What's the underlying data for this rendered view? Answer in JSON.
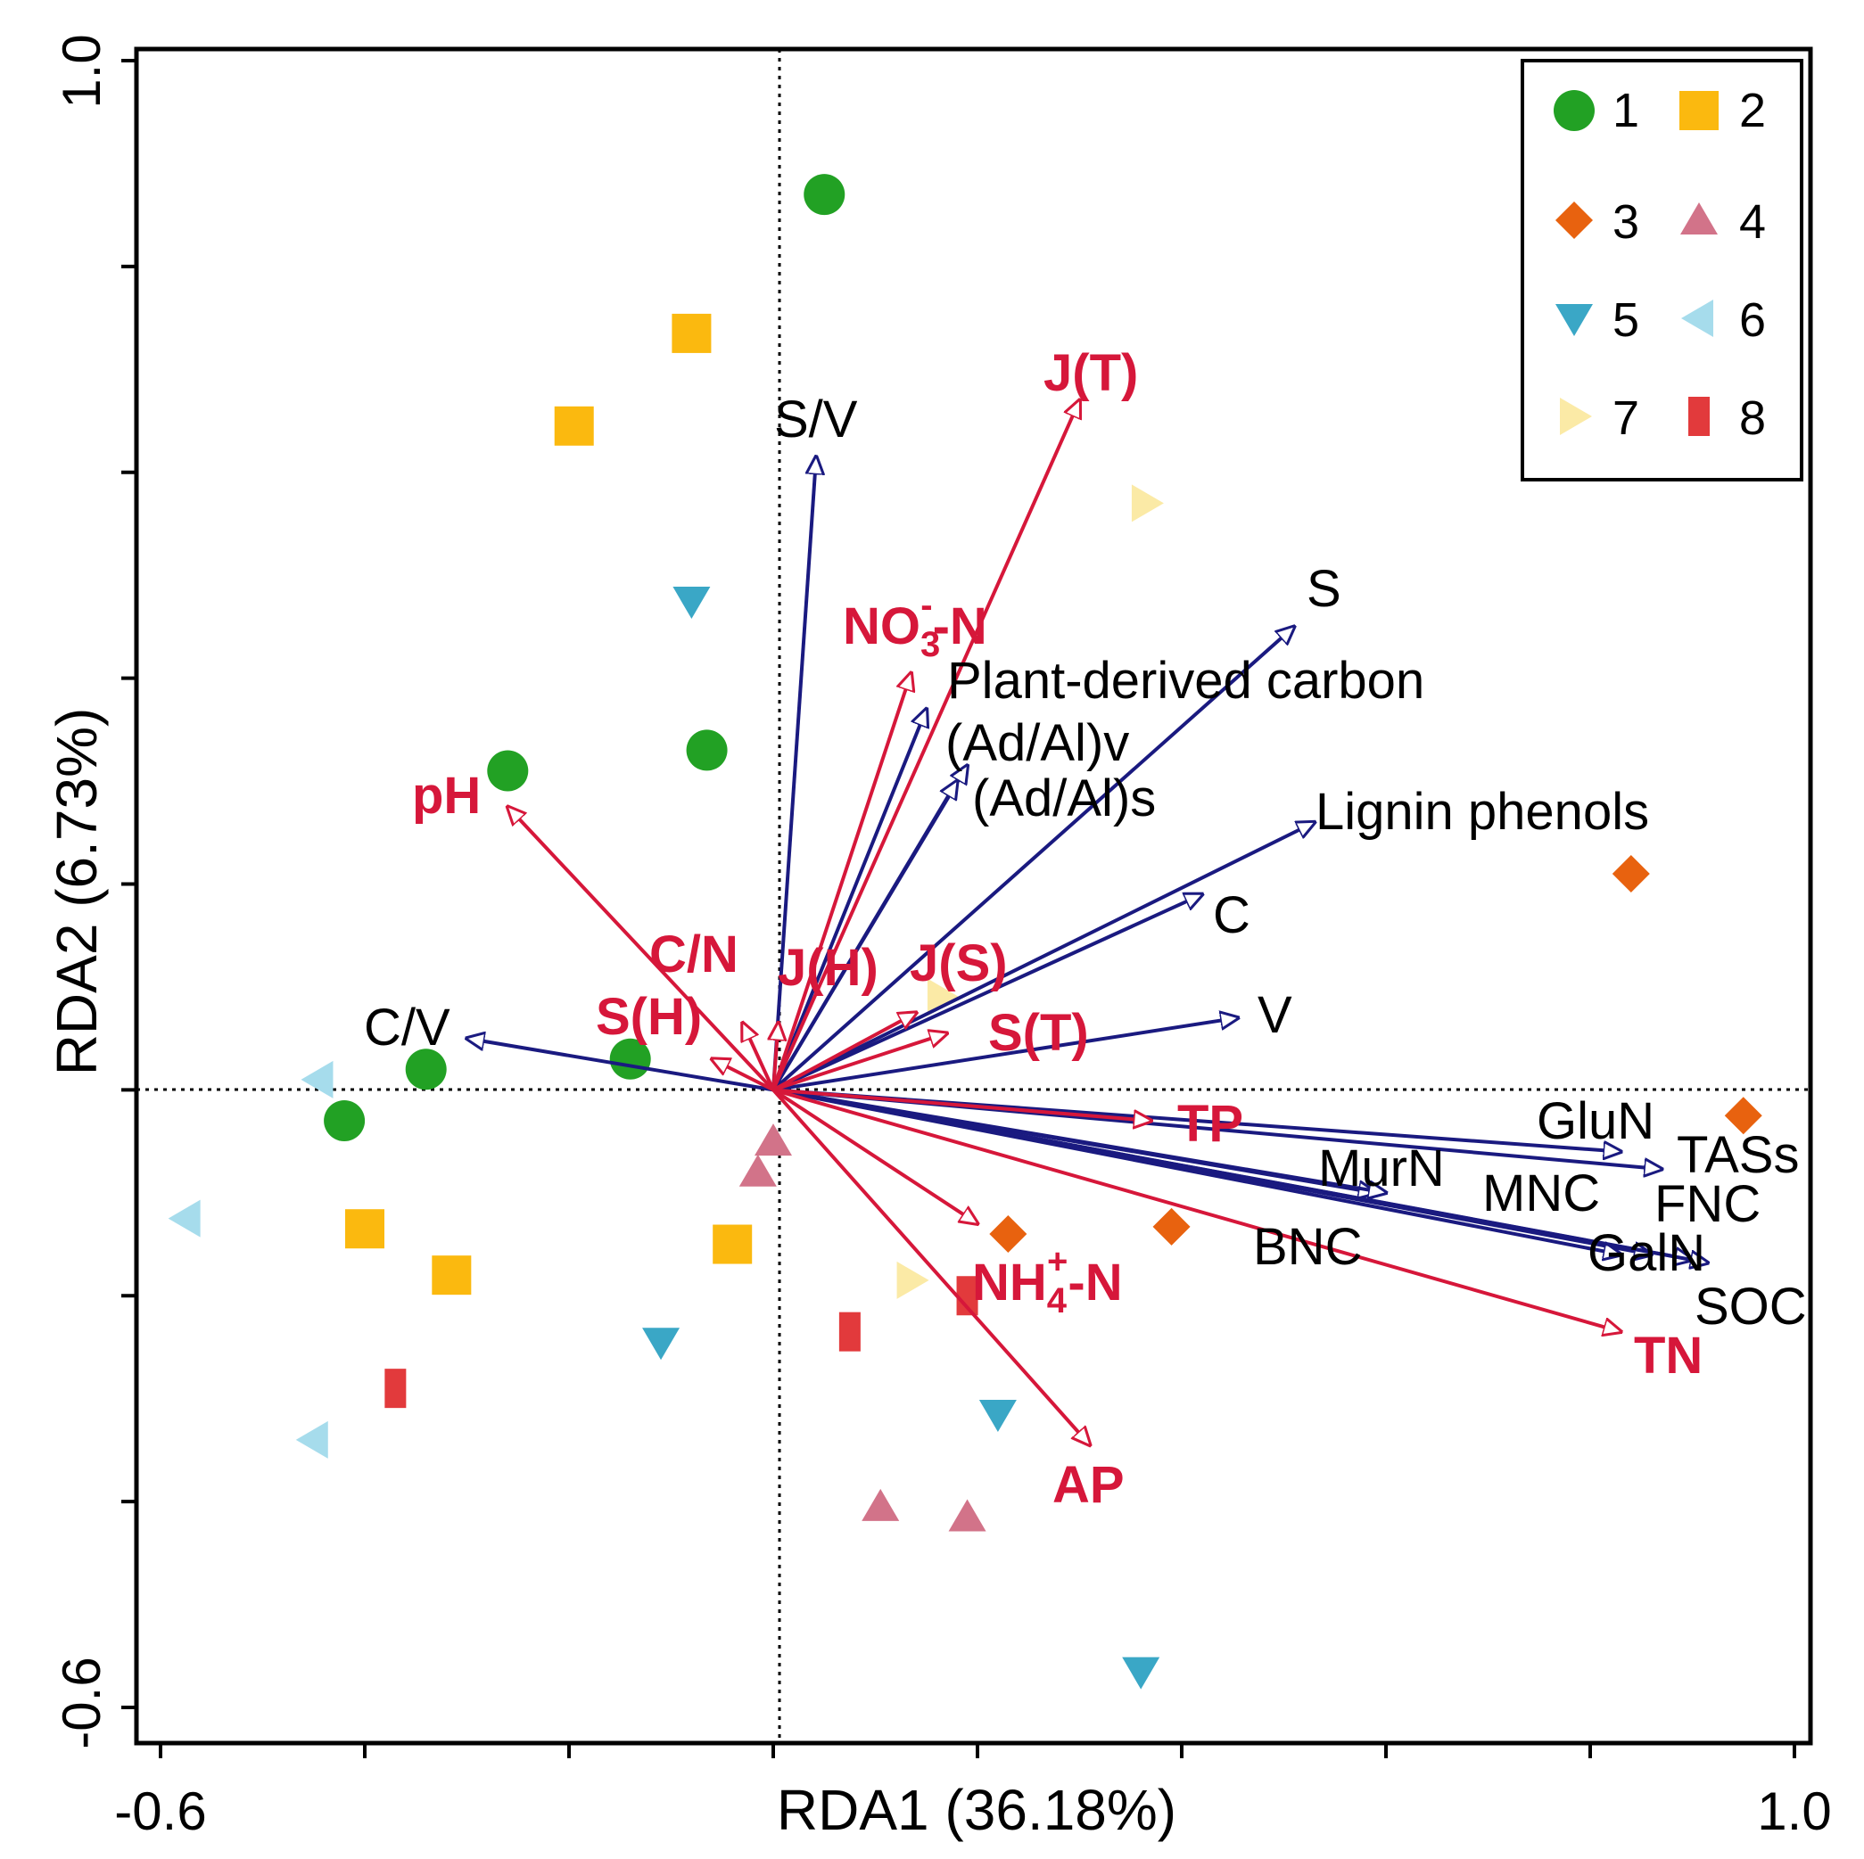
{
  "chart_data": {
    "type": "scatter",
    "title": "",
    "xlabel": "RDA1 (36.18%)",
    "ylabel": "RDA2 (6.73%)",
    "xlim": [
      -0.6,
      1.0
    ],
    "ylim": [
      -0.6,
      1.0
    ],
    "x_tick_labels": [
      "-0.6",
      "1.0"
    ],
    "y_tick_labels": [
      "-0.6",
      "1.0"
    ],
    "x_ticks": [
      -0.6,
      -0.4,
      -0.2,
      0.0,
      0.2,
      0.4,
      0.6,
      0.8,
      1.0
    ],
    "y_ticks": [
      -0.6,
      -0.4,
      -0.2,
      0.0,
      0.2,
      0.4,
      0.6,
      0.8,
      1.0
    ],
    "legend_position": "top-right",
    "colors": {
      "response_arrow": "#1a1a80",
      "explanatory_arrow": "#d6173a",
      "g1": "#22a124",
      "g2": "#fbb90f",
      "g3": "#e8620f",
      "g4": "#d27389",
      "g5": "#3aa7c6",
      "g6": "#a6dcec",
      "g7": "#fbeaa6",
      "g8": "#e23a3c"
    },
    "groups": [
      {
        "name": "1",
        "marker": "circle",
        "color": "#22a124",
        "points": [
          [
            0.05,
            0.87
          ],
          [
            -0.065,
            0.33
          ],
          [
            -0.26,
            0.31
          ],
          [
            -0.14,
            0.03
          ],
          [
            -0.34,
            0.02
          ],
          [
            -0.42,
            -0.03
          ]
        ]
      },
      {
        "name": "2",
        "marker": "square",
        "color": "#fbb90f",
        "points": [
          [
            -0.08,
            0.735
          ],
          [
            -0.195,
            0.645
          ],
          [
            -0.4,
            -0.135
          ],
          [
            -0.315,
            -0.18
          ],
          [
            -0.04,
            -0.15
          ]
        ]
      },
      {
        "name": "3",
        "marker": "diamond",
        "color": "#e8620f",
        "points": [
          [
            0.84,
            0.21
          ],
          [
            0.95,
            -0.025
          ],
          [
            0.23,
            -0.14
          ],
          [
            0.39,
            -0.133
          ]
        ]
      },
      {
        "name": "4",
        "marker": "triangle-up",
        "color": "#d27389",
        "points": [
          [
            0.0,
            -0.05
          ],
          [
            -0.015,
            -0.08
          ],
          [
            0.105,
            -0.405
          ],
          [
            0.19,
            -0.415
          ]
        ]
      },
      {
        "name": "5",
        "marker": "triangle-down",
        "color": "#3aa7c6",
        "points": [
          [
            -0.08,
            0.475
          ],
          [
            -0.11,
            -0.245
          ],
          [
            0.22,
            -0.315
          ],
          [
            0.36,
            -0.565
          ]
        ]
      },
      {
        "name": "6",
        "marker": "triangle-left",
        "color": "#a6dcec",
        "points": [
          [
            -0.445,
            0.01
          ],
          [
            -0.575,
            -0.125
          ],
          [
            -0.45,
            -0.34
          ]
        ]
      },
      {
        "name": "7",
        "marker": "triangle-right",
        "color": "#fbeaa6",
        "points": [
          [
            0.365,
            0.57
          ],
          [
            0.165,
            0.09
          ],
          [
            0.135,
            -0.185
          ]
        ]
      },
      {
        "name": "8",
        "marker": "rect",
        "color": "#e23a3c",
        "points": [
          [
            -0.37,
            -0.29
          ],
          [
            0.075,
            -0.235
          ],
          [
            0.19,
            -0.2
          ]
        ]
      }
    ],
    "response_vectors": [
      {
        "label": "S/V",
        "x": 0.042,
        "y": 0.615
      },
      {
        "label": "S",
        "x": 0.51,
        "y": 0.45
      },
      {
        "label": "Plant-derived carbon",
        "x": 0.15,
        "y": 0.37
      },
      {
        "label": "(Ad/Al)v",
        "x": 0.19,
        "y": 0.315
      },
      {
        "label": "(Ad/Al)s",
        "x": 0.18,
        "y": 0.3
      },
      {
        "label": "Lignin phenols",
        "x": 0.53,
        "y": 0.26
      },
      {
        "label": "C",
        "x": 0.42,
        "y": 0.19
      },
      {
        "label": "V",
        "x": 0.455,
        "y": 0.07
      },
      {
        "label": "C/V",
        "x": -0.3,
        "y": 0.05
      },
      {
        "label": "GluN",
        "x": 0.83,
        "y": -0.06
      },
      {
        "label": "TASs",
        "x": 0.87,
        "y": -0.077
      },
      {
        "label": "MurN",
        "x": 0.59,
        "y": -0.1
      },
      {
        "label": "MNC",
        "x": 0.86,
        "y": -0.16
      },
      {
        "label": "FNC",
        "x": 0.9,
        "y": -0.165
      },
      {
        "label": "GalN",
        "x": 0.83,
        "y": -0.16
      },
      {
        "label": "SOC",
        "x": 0.915,
        "y": -0.168
      },
      {
        "label": "BNC",
        "x": 0.6,
        "y": -0.1
      }
    ],
    "explanatory_vectors": [
      {
        "label": "J(T)",
        "x": 0.3,
        "y": 0.67
      },
      {
        "label": "NO3--N",
        "x": 0.135,
        "y": 0.405
      },
      {
        "label": "pH",
        "x": -0.26,
        "y": 0.275
      },
      {
        "label": "C/N",
        "x": -0.03,
        "y": 0.065
      },
      {
        "label": "S(H)",
        "x": -0.06,
        "y": 0.03
      },
      {
        "label": "J(H)",
        "x": 0.005,
        "y": 0.065
      },
      {
        "label": "J(S)",
        "x": 0.14,
        "y": 0.075
      },
      {
        "label": "S(T)",
        "x": 0.17,
        "y": 0.055
      },
      {
        "label": "TP",
        "x": 0.37,
        "y": -0.03
      },
      {
        "label": "NH4+-N",
        "x": 0.2,
        "y": -0.13
      },
      {
        "label": "AP",
        "x": 0.31,
        "y": -0.345
      },
      {
        "label": "TN",
        "x": 0.83,
        "y": -0.235
      }
    ]
  },
  "labels": {
    "response": {
      "S/V": "S/V",
      "S": "S",
      "PDC": "Plant-derived carbon",
      "AdAlv": "(Ad/Al)v",
      "AdAls": "(Ad/Al)s",
      "LP": "Lignin phenols",
      "C": "C",
      "V": "V",
      "CV": "C/V",
      "GluN": "GluN",
      "TASs": "TASs",
      "MurN": "MurN",
      "MNC": "MNC",
      "FNC": "FNC",
      "GalN": "GalN",
      "SOC": "SOC",
      "BNC": "BNC"
    },
    "explanatory": {
      "JT": "J(T)",
      "NO3_a": "NO",
      "NO3_sub": "3",
      "NO3_sup": "-",
      "NO3_b": "-N",
      "pH": "pH",
      "CN": "C/N",
      "SH": "S(H)",
      "JH": "J(H)",
      "JS": "J(S)",
      "ST": "S(T)",
      "TP": "TP",
      "NH4_a": "NH",
      "NH4_sub": "4",
      "NH4_sup": "+",
      "NH4_b": "-N",
      "AP": "AP",
      "TN": "TN"
    },
    "legend": [
      "1",
      "2",
      "3",
      "4",
      "5",
      "6",
      "7",
      "8"
    ]
  }
}
